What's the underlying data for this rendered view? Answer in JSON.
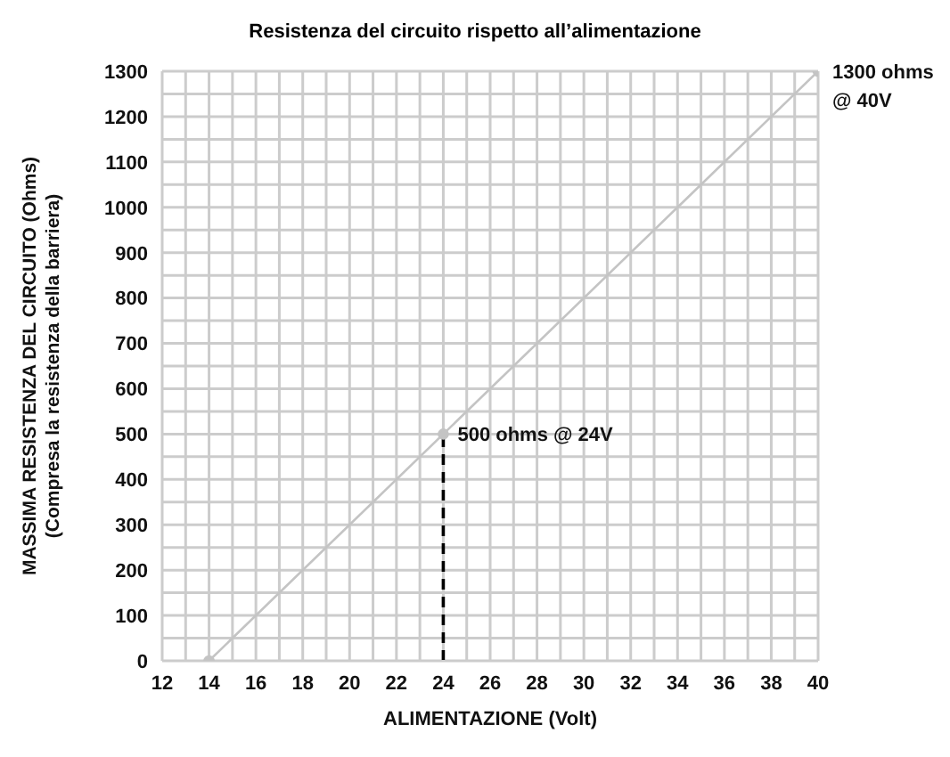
{
  "chart_data": {
    "type": "line",
    "title": "Resistenza del circuito rispetto all’alimentazione",
    "xlabel": "ALIMENTAZIONE (Volt)",
    "ylabel": "MASSIMA RESISTENZA DEL CIRCUITO (Ohms)\n(Compresa la resistenza della barriera)",
    "series": [
      {
        "x": [
          14,
          24,
          40
        ],
        "values": [
          0,
          500,
          1300
        ],
        "color": "#c4c4c4",
        "marker": "circle",
        "line_style": "solid"
      },
      {
        "x": [
          24,
          24
        ],
        "values": [
          0,
          500
        ],
        "color": "#000000",
        "marker": "none",
        "line_style": "dashed"
      }
    ],
    "xlim": [
      12,
      40
    ],
    "xticks": [
      12,
      {
        "value": 13,
        "label": null
      },
      14,
      {
        "value": 15,
        "label": null
      },
      16,
      {
        "value": 17,
        "label": null
      },
      18,
      {
        "value": 19,
        "label": null
      },
      20,
      {
        "value": 21,
        "label": null
      },
      22,
      {
        "value": 23,
        "label": null
      },
      24,
      {
        "value": 25,
        "label": null
      },
      26,
      {
        "value": 27,
        "label": null
      },
      28,
      {
        "value": 29,
        "label": null
      },
      30,
      {
        "value": 31,
        "label": null
      },
      32,
      {
        "value": 33,
        "label": null
      },
      34,
      {
        "value": 35,
        "label": null
      },
      36,
      {
        "value": 37,
        "label": null
      },
      38,
      {
        "value": 39,
        "label": null
      },
      40
    ],
    "ylim": [
      0,
      1300
    ],
    "yticks": [
      0,
      {
        "value": 50,
        "label": null
      },
      100,
      {
        "value": 150,
        "label": null
      },
      200,
      {
        "value": 250,
        "label": null
      },
      300,
      {
        "value": 350,
        "label": null
      },
      400,
      {
        "value": 450,
        "label": null
      },
      500,
      {
        "value": 550,
        "label": null
      },
      600,
      {
        "value": 650,
        "label": null
      },
      700,
      {
        "value": 750,
        "label": null
      },
      800,
      {
        "value": 850,
        "label": null
      },
      900,
      {
        "value": 950,
        "label": null
      },
      1000,
      {
        "value": 1050,
        "label": null
      },
      1100,
      {
        "value": 1150,
        "label": null
      },
      1200,
      {
        "value": 1250,
        "label": null
      },
      1300
    ],
    "grid": true,
    "annotations": [
      {
        "text": "500 ohms @ 24V",
        "x": 24,
        "y": 500
      },
      {
        "text": "1300 ohms\n@ 40V",
        "x": 40,
        "y": 1300
      }
    ]
  }
}
